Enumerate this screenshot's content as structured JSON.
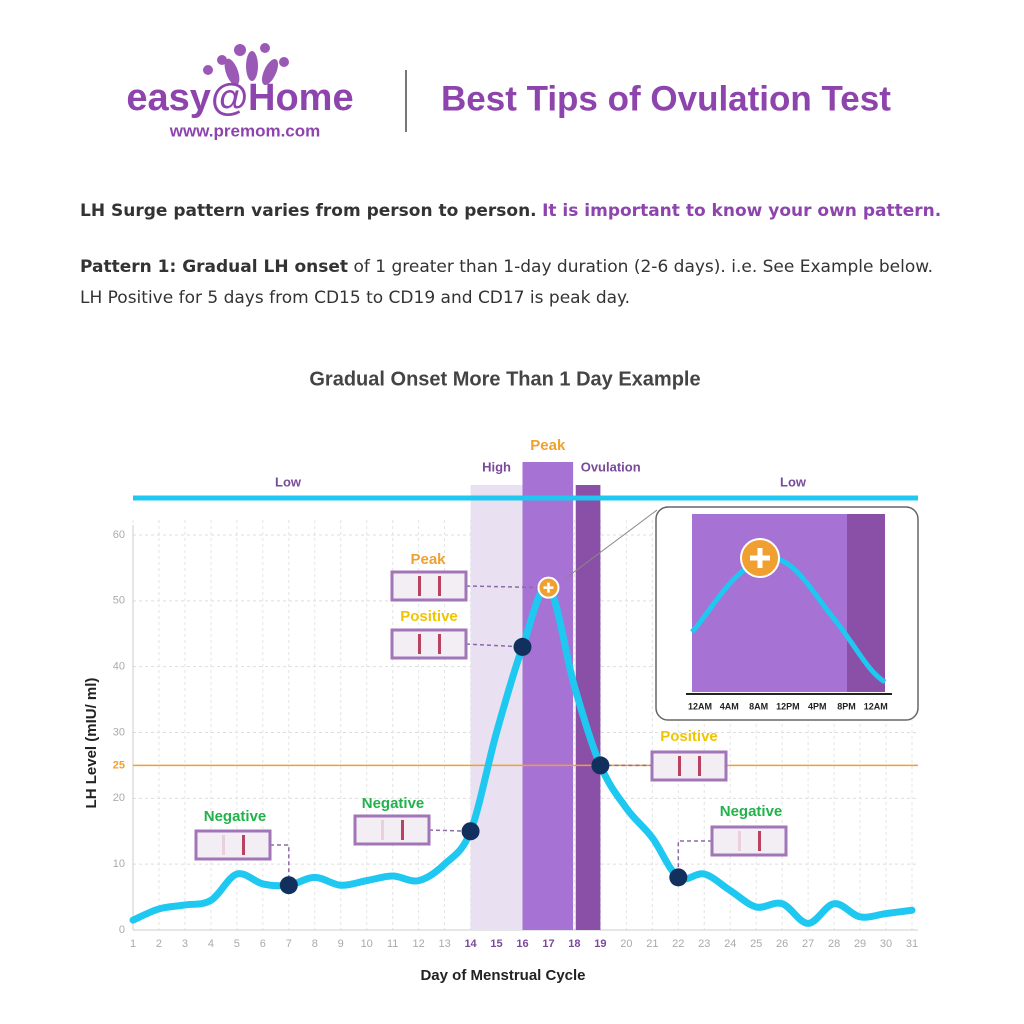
{
  "header": {
    "brand": "easy@Home",
    "url": "www.premom.com",
    "title": "Best Tips of Ovulation Test"
  },
  "intro": {
    "lead": "LH Surge pattern varies from person to person.",
    "emphasis": "It is important to know your own pattern."
  },
  "pattern": {
    "label": "Pattern 1: Gradual LH onset",
    "text": "of 1 greater than 1-day duration (2-6 days). i.e. See Example below.",
    "line2": "LH Positive for 5 days from CD15 to CD19 and CD17 is peak day."
  },
  "chart_data": {
    "type": "line",
    "title": "Gradual Onset More Than 1 Day Example",
    "x_label": "Day of Menstrual Cycle",
    "y_label": "LH Level (mIU/ ml)",
    "x": [
      1,
      2,
      3,
      4,
      5,
      6,
      7,
      8,
      9,
      10,
      11,
      12,
      13,
      14,
      15,
      16,
      17,
      18,
      19,
      20,
      21,
      22,
      23,
      24,
      25,
      26,
      27,
      28,
      29,
      30,
      31
    ],
    "values": [
      1.5,
      3.2,
      3.8,
      4.5,
      8.5,
      7,
      6.8,
      8,
      6.8,
      7.5,
      8.2,
      7.5,
      10,
      15,
      30,
      43,
      52,
      37,
      25,
      18.5,
      14,
      8,
      8.5,
      6,
      3.5,
      4,
      1,
      4,
      2,
      2.5,
      3
    ],
    "color": "#1ec8f0",
    "xlim": [
      1,
      31
    ],
    "xticks": [
      1,
      2,
      3,
      4,
      5,
      6,
      7,
      8,
      9,
      10,
      11,
      12,
      13,
      14,
      15,
      16,
      17,
      18,
      19,
      20,
      21,
      22,
      23,
      24,
      25,
      26,
      27,
      28,
      29,
      30,
      31
    ],
    "ylim": [
      0,
      60
    ],
    "yticks": [
      0,
      10,
      20,
      30,
      40,
      50,
      60
    ],
    "grid": true,
    "threshold": 25,
    "threshold_color": "#f0a030",
    "baseline_labels": [
      "Low",
      "Low"
    ],
    "phases": [
      {
        "label": "High",
        "start": 14,
        "end": 16,
        "color": "#e9e0f1",
        "label_color": "#7a4a9a"
      },
      {
        "label": "Peak",
        "start": 16,
        "end": 17.95,
        "color": "#a672d4",
        "label_color": "#f0a030"
      },
      {
        "label": "Ovulation",
        "start": 18.05,
        "end": 19,
        "color": "#8a4fa6",
        "label_color": "#7a4a9a"
      }
    ],
    "markers": [
      {
        "x": 7,
        "label": "Negative",
        "color": "#22b24c"
      },
      {
        "x": 14,
        "label": "Negative",
        "color": "#22b24c"
      },
      {
        "x": 16,
        "label": "Positive",
        "color": "#f0c400"
      },
      {
        "x": 17,
        "label": "Peak",
        "color": "#f0a030"
      },
      {
        "x": 19,
        "label": "Positive",
        "color": "#f0c400"
      },
      {
        "x": 22,
        "label": "Negative",
        "color": "#22b24c"
      }
    ],
    "inset": {
      "times": [
        "12AM",
        "4AM",
        "8AM",
        "12PM",
        "4PM",
        "8PM",
        "12AM"
      ]
    }
  }
}
